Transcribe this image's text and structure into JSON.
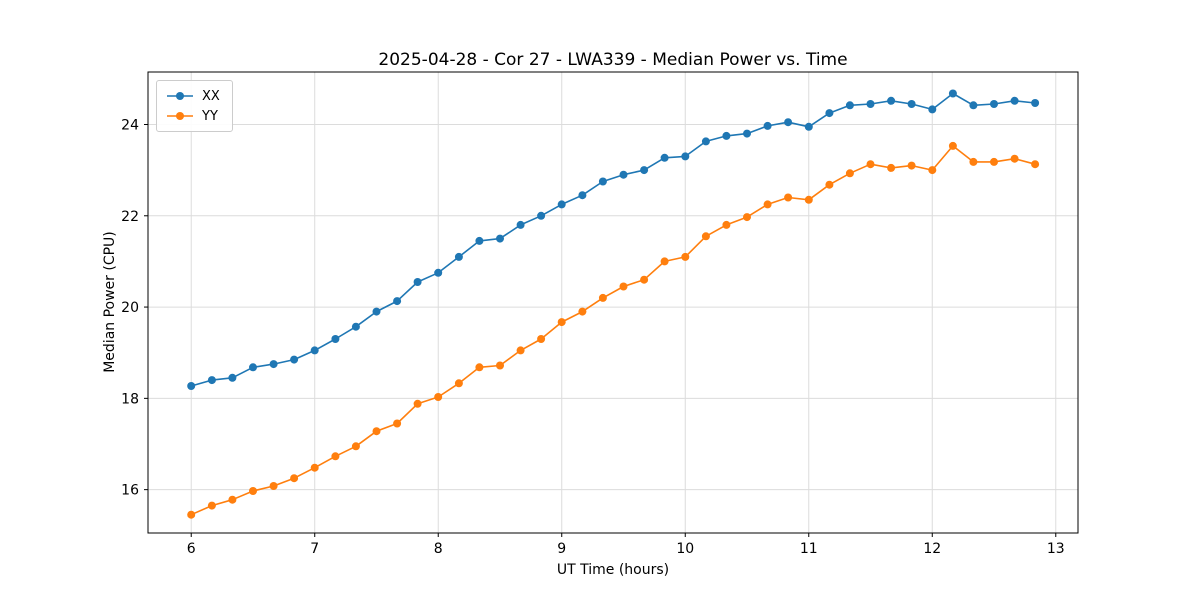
{
  "chart_data": {
    "type": "line",
    "title": "2025-04-28 - Cor 27 - LWA339 - Median Power vs. Time",
    "xlabel": "UT Time (hours)",
    "ylabel": "Median Power (CPU)",
    "xlim": [
      5.65,
      13.18
    ],
    "ylim": [
      15.05,
      25.15
    ],
    "xticks": [
      6,
      7,
      8,
      9,
      10,
      11,
      12,
      13
    ],
    "yticks": [
      16,
      18,
      20,
      22,
      24
    ],
    "grid": true,
    "legend_position": "upper left",
    "marker": "circle",
    "x": [
      6.0,
      6.167,
      6.333,
      6.5,
      6.667,
      6.833,
      7.0,
      7.167,
      7.333,
      7.5,
      7.667,
      7.833,
      8.0,
      8.167,
      8.333,
      8.5,
      8.667,
      8.833,
      9.0,
      9.167,
      9.333,
      9.5,
      9.667,
      9.833,
      10.0,
      10.167,
      10.333,
      10.5,
      10.667,
      10.833,
      11.0,
      11.167,
      11.333,
      11.5,
      11.667,
      11.833,
      12.0,
      12.167,
      12.333,
      12.5,
      12.667,
      12.833
    ],
    "series": [
      {
        "name": "XX",
        "color": "#1f77b4",
        "values": [
          18.27,
          18.4,
          18.45,
          18.68,
          18.75,
          18.85,
          19.05,
          19.3,
          19.57,
          19.9,
          20.13,
          20.55,
          20.75,
          21.1,
          21.45,
          21.5,
          21.8,
          22.0,
          22.25,
          22.45,
          22.75,
          22.9,
          23.0,
          23.27,
          23.3,
          23.63,
          23.75,
          23.8,
          23.97,
          24.05,
          23.95,
          24.25,
          24.42,
          24.45,
          24.52,
          24.45,
          24.33,
          24.68,
          24.42,
          24.45,
          24.52,
          24.47
        ]
      },
      {
        "name": "YY",
        "color": "#ff7f0e",
        "values": [
          15.45,
          15.65,
          15.78,
          15.97,
          16.08,
          16.25,
          16.48,
          16.73,
          16.95,
          17.28,
          17.45,
          17.88,
          18.03,
          18.33,
          18.68,
          18.72,
          19.05,
          19.3,
          19.67,
          19.9,
          20.2,
          20.45,
          20.6,
          21.0,
          21.1,
          21.55,
          21.8,
          21.97,
          22.25,
          22.4,
          22.35,
          22.68,
          22.93,
          23.13,
          23.05,
          23.1,
          23.0,
          23.53,
          23.18,
          23.18,
          23.25,
          23.13
        ]
      }
    ]
  }
}
